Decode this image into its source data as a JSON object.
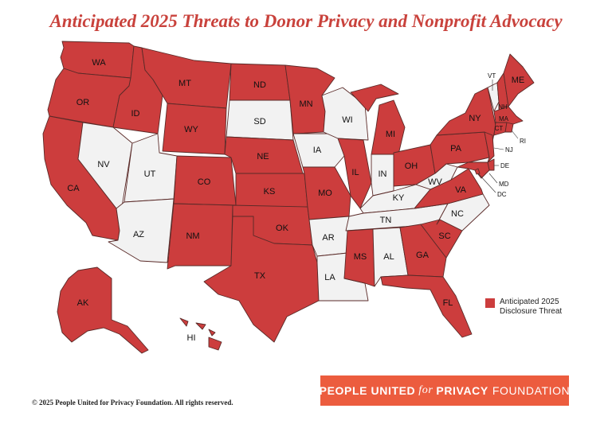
{
  "title": "Anticipated 2025 Threats to Donor Privacy and Nonprofit Advocacy",
  "legend": {
    "label_line1": "Anticipated 2025",
    "label_line2": "Disclosure Threat",
    "color": "#cc3d3d"
  },
  "colors": {
    "threat": "#cc3d3d",
    "no_threat": "#f2f2f2",
    "brand": "#ec5c3e",
    "title": "#c9423c"
  },
  "threat_states": [
    "WA",
    "OR",
    "CA",
    "ID",
    "MT",
    "WY",
    "CO",
    "NM",
    "ND",
    "NE",
    "KS",
    "OK",
    "TX",
    "MN",
    "MO",
    "IL",
    "MI",
    "OH",
    "MS",
    "GA",
    "SC",
    "FL",
    "VA",
    "PA",
    "NY",
    "ME",
    "NH",
    "MA",
    "CT",
    "NJ",
    "RI",
    "DE",
    "MD",
    "DC",
    "AK",
    "HI"
  ],
  "non_threat_states": [
    "NV",
    "UT",
    "AZ",
    "SD",
    "IA",
    "WI",
    "AR",
    "LA",
    "IN",
    "KY",
    "TN",
    "AL",
    "WV",
    "NC",
    "VT"
  ],
  "labels": {
    "WA": "WA",
    "OR": "OR",
    "CA": "CA",
    "ID": "ID",
    "NV": "NV",
    "UT": "UT",
    "AZ": "AZ",
    "MT": "MT",
    "WY": "WY",
    "CO": "CO",
    "NM": "NM",
    "ND": "ND",
    "SD": "SD",
    "NE": "NE",
    "KS": "KS",
    "OK": "OK",
    "TX": "TX",
    "MN": "MN",
    "IA": "IA",
    "MO": "MO",
    "AR": "AR",
    "LA": "LA",
    "WI": "WI",
    "IL": "IL",
    "MI": "MI",
    "IN": "IN",
    "OH": "OH",
    "KY": "KY",
    "TN": "TN",
    "MS": "MS",
    "AL": "AL",
    "GA": "GA",
    "FL": "FL",
    "SC": "SC",
    "NC": "NC",
    "VA": "VA",
    "WV": "WV",
    "PA": "PA",
    "NY": "NY",
    "VT": "VT",
    "NH": "NH",
    "ME": "ME",
    "MA": "MA",
    "CT": "CT",
    "RI": "RI",
    "NJ": "NJ",
    "DE": "DE",
    "MD": "MD",
    "DC": "DC",
    "AK": "AK",
    "HI": "HI"
  },
  "brand": {
    "people": "PEOPLE UNITED",
    "for": "for",
    "privacy": "PRIVACY",
    "foundation": "FOUNDATION"
  },
  "copyright": "© 2025 People United for Privacy Foundation. All rights reserved."
}
